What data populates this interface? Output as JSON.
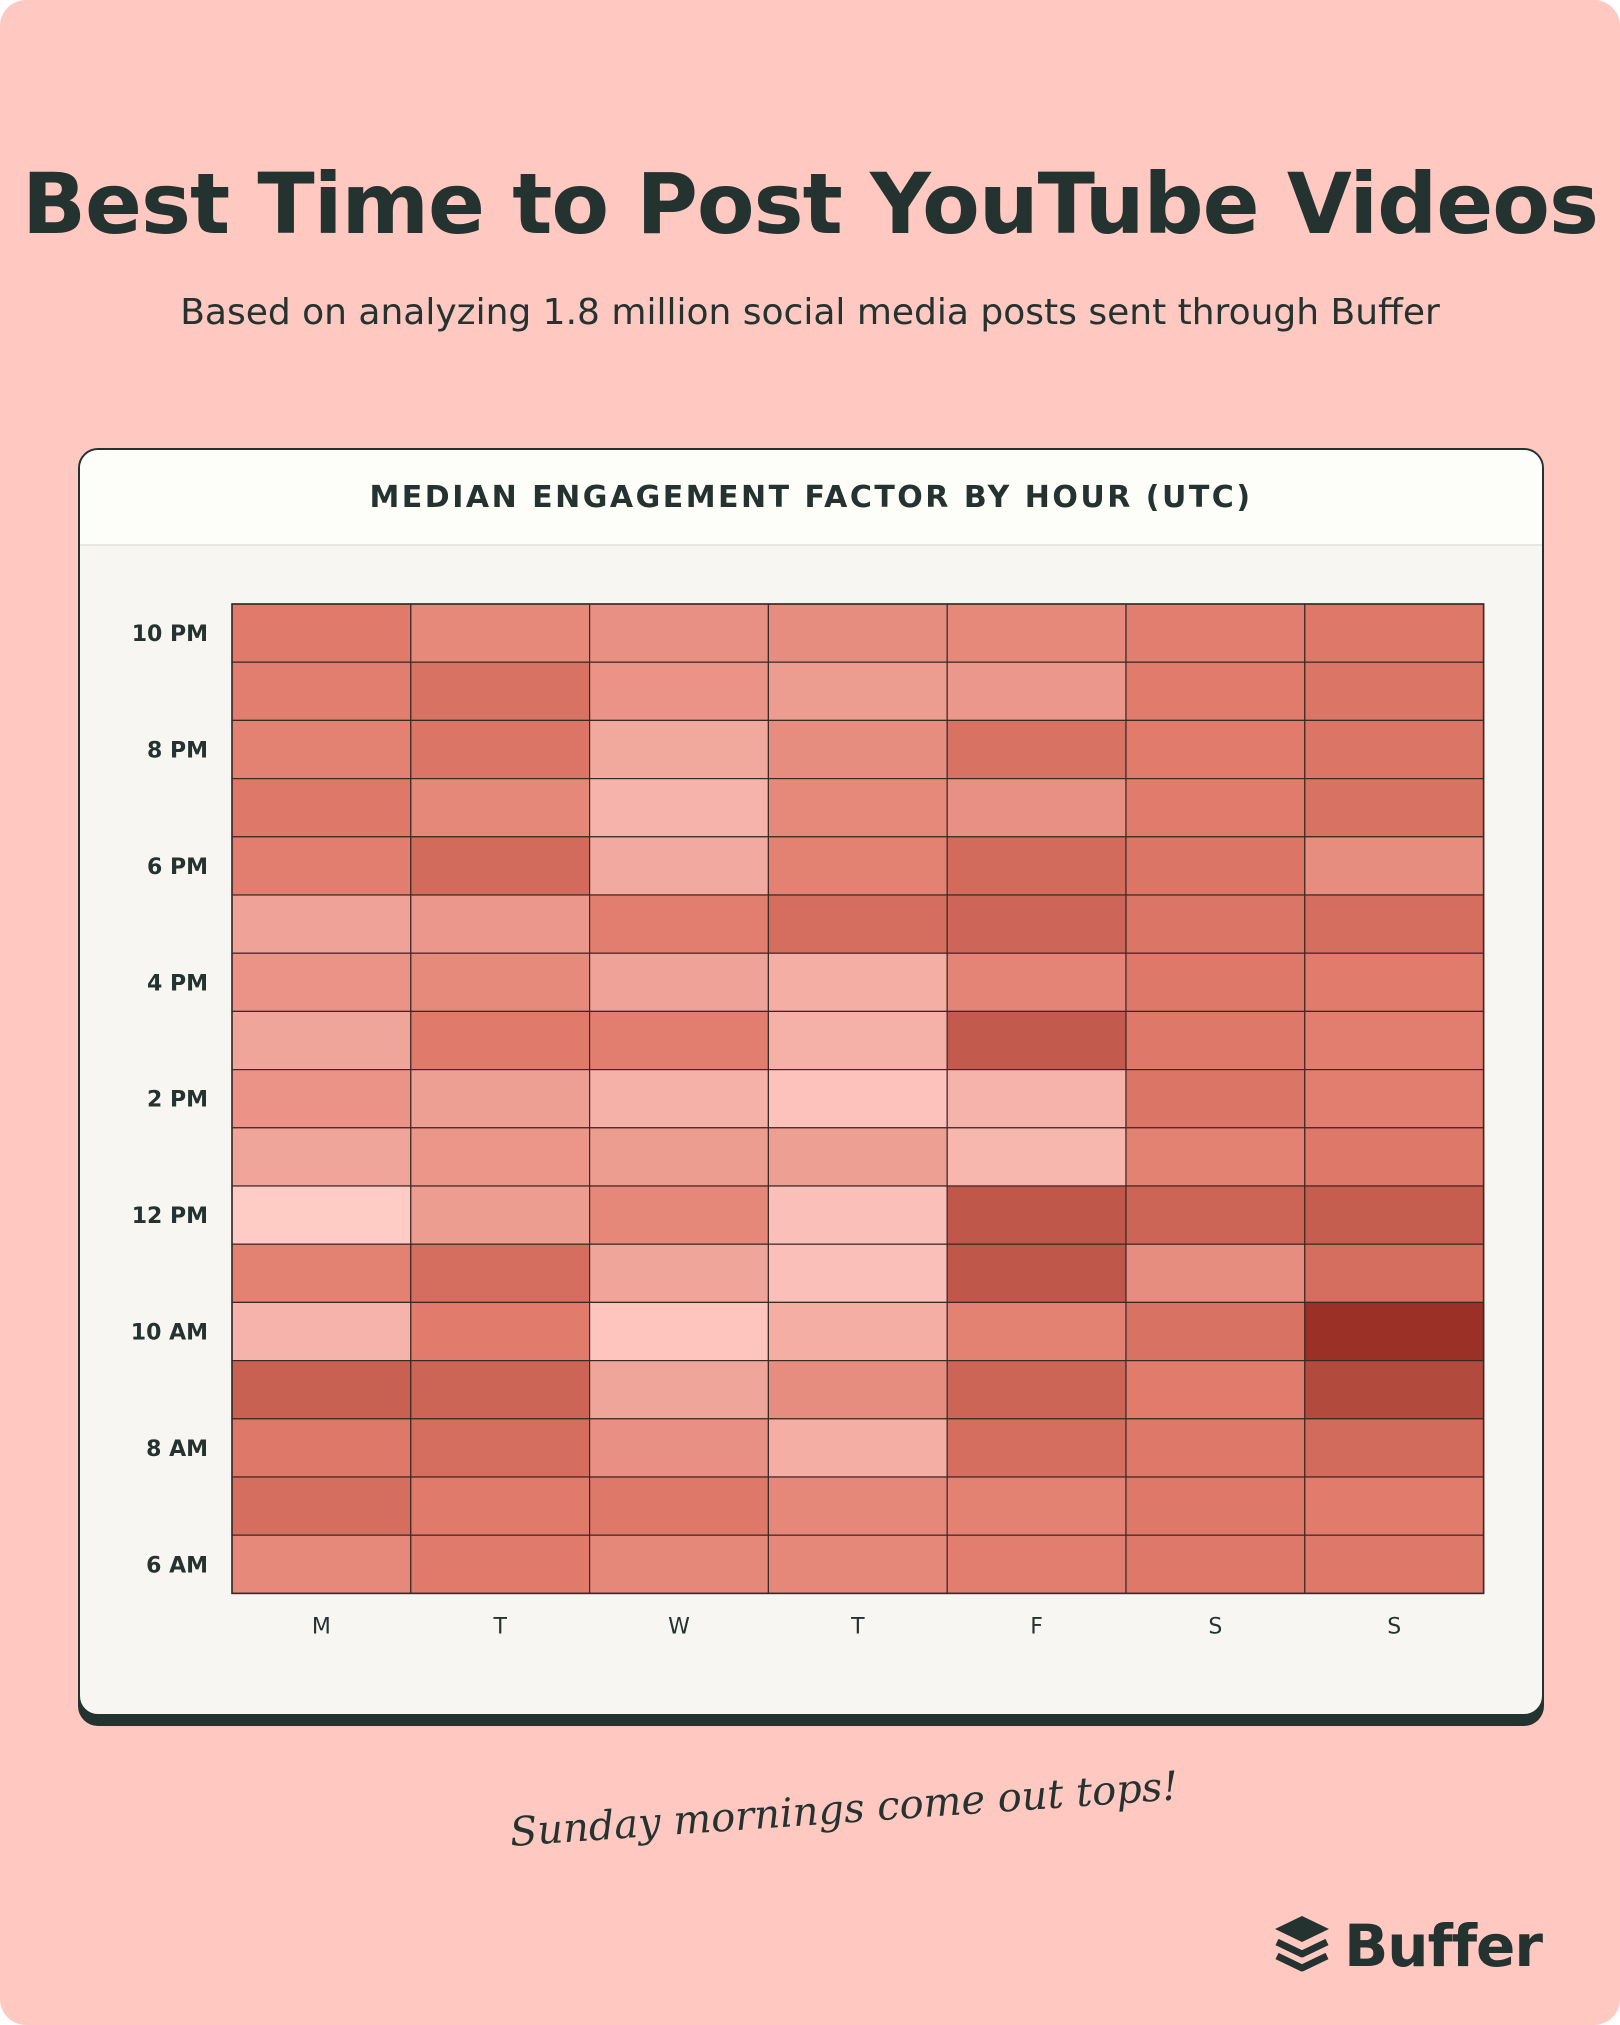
{
  "header": {
    "title": "Best Time to Post YouTube Videos",
    "subtitle": "Based on analyzing 1.8 million social media posts sent through Buffer"
  },
  "card": {
    "heading": "MEDIAN ENGAGEMENT FACTOR BY HOUR (UTC)"
  },
  "annotation": "Sunday mornings come out tops!",
  "brand": {
    "name": "Buffer",
    "icon": "buffer-stack-icon"
  },
  "colors": {
    "background": "#ffc8c1",
    "card": "#f7f6f2",
    "ink": "#243230",
    "scale_low": "#ffcbc5",
    "scale_mid": "#e07a6a",
    "scale_high": "#9a3026"
  },
  "chart_data": {
    "type": "heatmap",
    "title": "MEDIAN ENGAGEMENT FACTOR BY HOUR (UTC)",
    "x_categories": [
      "M",
      "T",
      "W",
      "T",
      "F",
      "S",
      "S"
    ],
    "y_categories": [
      "10 PM",
      "9 PM",
      "8 PM",
      "7 PM",
      "6 PM",
      "5 PM",
      "4 PM",
      "3 PM",
      "2 PM",
      "1 PM",
      "12 PM",
      "11 AM",
      "10 AM",
      "9 AM",
      "8 AM",
      "7 AM",
      "6 AM"
    ],
    "y_tick_labels": [
      "10 PM",
      "8 PM",
      "6 PM",
      "4 PM",
      "2 PM",
      "12 PM",
      "10 AM",
      "8 AM",
      "6 AM"
    ],
    "value_scale": "relative intensity (0 = lightest, 1 = darkest)",
    "values": [
      [
        0.55,
        0.45,
        0.4,
        0.42,
        0.45,
        0.52,
        0.56
      ],
      [
        0.52,
        0.6,
        0.38,
        0.32,
        0.35,
        0.54,
        0.58
      ],
      [
        0.5,
        0.58,
        0.24,
        0.42,
        0.6,
        0.54,
        0.58
      ],
      [
        0.56,
        0.46,
        0.16,
        0.45,
        0.4,
        0.54,
        0.6
      ],
      [
        0.52,
        0.64,
        0.23,
        0.5,
        0.64,
        0.58,
        0.42
      ],
      [
        0.28,
        0.35,
        0.52,
        0.62,
        0.67,
        0.58,
        0.62
      ],
      [
        0.38,
        0.44,
        0.28,
        0.2,
        0.48,
        0.56,
        0.54
      ],
      [
        0.26,
        0.55,
        0.52,
        0.18,
        0.74,
        0.56,
        0.52
      ],
      [
        0.38,
        0.3,
        0.18,
        0.06,
        0.16,
        0.58,
        0.52
      ],
      [
        0.26,
        0.36,
        0.32,
        0.3,
        0.14,
        0.5,
        0.56
      ],
      [
        0.0,
        0.32,
        0.46,
        0.08,
        0.76,
        0.68,
        0.72
      ],
      [
        0.5,
        0.62,
        0.26,
        0.08,
        0.76,
        0.42,
        0.62
      ],
      [
        0.16,
        0.54,
        0.04,
        0.2,
        0.5,
        0.6,
        1.0
      ],
      [
        0.7,
        0.68,
        0.26,
        0.42,
        0.68,
        0.54,
        0.84
      ],
      [
        0.56,
        0.62,
        0.4,
        0.2,
        0.62,
        0.56,
        0.64
      ],
      [
        0.62,
        0.55,
        0.56,
        0.46,
        0.5,
        0.56,
        0.54
      ],
      [
        0.45,
        0.55,
        0.46,
        0.46,
        0.52,
        0.56,
        0.56
      ]
    ],
    "grid": true,
    "legend": "none"
  }
}
